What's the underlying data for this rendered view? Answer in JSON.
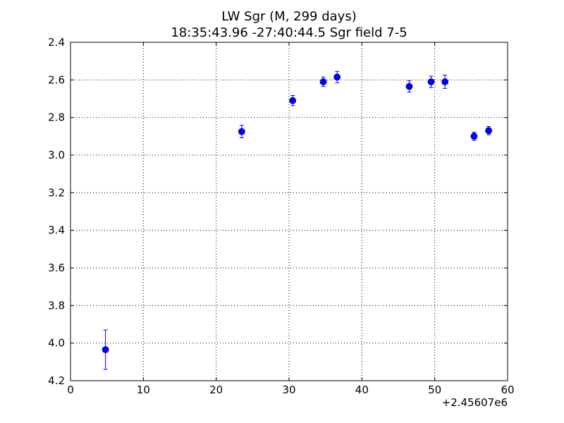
{
  "chart_data": {
    "type": "scatter",
    "title": "LW Sgr  (M, 299 days)",
    "subtitle": "18:35:43.96 -27:40:44.5 Sgr field 7-5",
    "xlabel": "",
    "ylabel": "",
    "x_offset_label": "+2.45607e6",
    "xlim": [
      0,
      60
    ],
    "ylim": [
      2.4,
      4.2
    ],
    "y_inverted": true,
    "grid": true,
    "x_ticks": [
      0,
      10,
      20,
      30,
      40,
      50,
      60
    ],
    "y_ticks": [
      2.4,
      2.6,
      2.8,
      3.0,
      3.2,
      3.4,
      3.6,
      3.8,
      4.0,
      4.2
    ],
    "x_tick_labels": [
      "0",
      "10",
      "20",
      "30",
      "40",
      "50",
      "60"
    ],
    "y_tick_labels": [
      "2.4",
      "2.6",
      "2.8",
      "3.0",
      "3.2",
      "3.4",
      "3.6",
      "3.8",
      "4.0",
      "4.2"
    ],
    "marker_color": "#0000ff",
    "series": [
      {
        "points": [
          {
            "x": 4.8,
            "y": 4.035,
            "err": 0.105
          },
          {
            "x": 23.5,
            "y": 2.875,
            "err": 0.033
          },
          {
            "x": 30.5,
            "y": 2.71,
            "err": 0.027
          },
          {
            "x": 34.7,
            "y": 2.61,
            "err": 0.025
          },
          {
            "x": 36.6,
            "y": 2.585,
            "err": 0.03
          },
          {
            "x": 46.5,
            "y": 2.635,
            "err": 0.03
          },
          {
            "x": 49.5,
            "y": 2.61,
            "err": 0.03
          },
          {
            "x": 51.4,
            "y": 2.61,
            "err": 0.035
          },
          {
            "x": 55.4,
            "y": 2.9,
            "err": 0.022
          },
          {
            "x": 57.4,
            "y": 2.87,
            "err": 0.022
          }
        ]
      }
    ]
  }
}
